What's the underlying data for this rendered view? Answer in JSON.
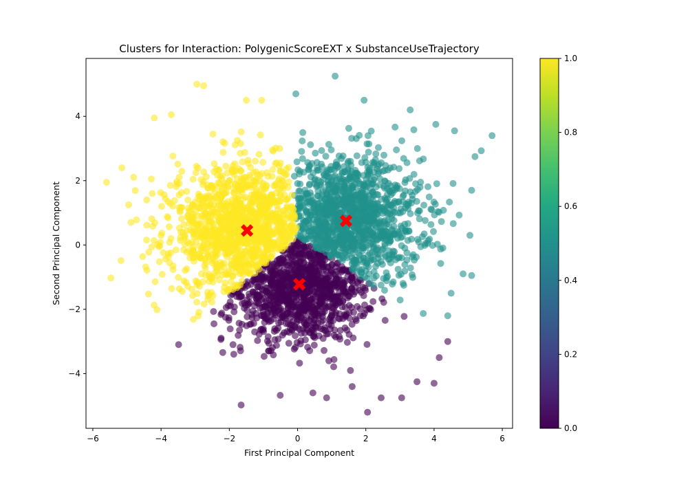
{
  "chart_data": {
    "type": "scatter",
    "title": "Clusters for Interaction: PolygenicScoreEXT x SubstanceUseTrajectory",
    "xlabel": "First Principal Component",
    "ylabel": "Second Principal Component",
    "xlim": [
      -6.2,
      6.3
    ],
    "ylim": [
      -5.7,
      5.8
    ],
    "xticks": [
      -6,
      -4,
      -2,
      0,
      2,
      4,
      6
    ],
    "yticks": [
      -4,
      -2,
      0,
      2,
      4
    ],
    "xtick_labels": [
      "−6",
      "−4",
      "−2",
      "0",
      "2",
      "4",
      "6"
    ],
    "ytick_labels": [
      "−4",
      "−2",
      "0",
      "2",
      "4"
    ],
    "grid": false,
    "colormap": "viridis",
    "colorbar": {
      "min": 0.0,
      "max": 1.0,
      "ticks": [
        0.0,
        0.2,
        0.4,
        0.6,
        0.8,
        1.0
      ],
      "tick_labels": [
        "0.0",
        "0.2",
        "0.4",
        "0.6",
        "0.8",
        "1.0"
      ]
    },
    "clusters": [
      {
        "label": 0.0,
        "color": "#440154",
        "center": [
          0.05,
          -1.2
        ],
        "spread": [
          1.1,
          0.9
        ],
        "count": 1400
      },
      {
        "label": 0.5,
        "color": "#21918c",
        "center": [
          1.4,
          0.75
        ],
        "spread": [
          1.1,
          1.0
        ],
        "count": 1500
      },
      {
        "label": 1.0,
        "color": "#fde725",
        "center": [
          -1.5,
          0.45
        ],
        "spread": [
          1.1,
          1.0
        ],
        "count": 1500
      }
    ],
    "outliers": [
      {
        "cluster": 1.0,
        "x": -5.6,
        "y": 1.95
      },
      {
        "cluster": 1.0,
        "x": -5.15,
        "y": 2.4
      },
      {
        "cluster": 1.0,
        "x": -2.95,
        "y": 5.0
      },
      {
        "cluster": 1.0,
        "x": -2.75,
        "y": 4.95
      },
      {
        "cluster": 1.0,
        "x": -1.5,
        "y": 4.5
      },
      {
        "cluster": 1.0,
        "x": -1.05,
        "y": 4.5
      },
      {
        "cluster": 1.0,
        "x": -4.2,
        "y": 3.95
      },
      {
        "cluster": 1.0,
        "x": -3.7,
        "y": 4.05
      },
      {
        "cluster": 1.0,
        "x": -4.95,
        "y": 1.25
      },
      {
        "cluster": 1.0,
        "x": -3.65,
        "y": -0.65
      },
      {
        "cluster": 0.5,
        "x": 1.1,
        "y": 5.25
      },
      {
        "cluster": 0.5,
        "x": -0.05,
        "y": 4.7
      },
      {
        "cluster": 0.5,
        "x": 1.95,
        "y": 4.5
      },
      {
        "cluster": 0.5,
        "x": 5.7,
        "y": 3.4
      },
      {
        "cluster": 0.5,
        "x": 5.2,
        "y": 2.75
      },
      {
        "cluster": 0.5,
        "x": 5.1,
        "y": 1.7
      },
      {
        "cluster": 0.5,
        "x": 5.05,
        "y": 0.3
      },
      {
        "cluster": 0.5,
        "x": 5.1,
        "y": -0.95
      },
      {
        "cluster": 0.5,
        "x": 4.85,
        "y": -0.9
      },
      {
        "cluster": 0.5,
        "x": 4.6,
        "y": 3.55
      },
      {
        "cluster": 0.5,
        "x": 4.4,
        "y": -2.2
      },
      {
        "cluster": 0.5,
        "x": 4.5,
        "y": -1.5
      },
      {
        "cluster": 0.5,
        "x": 4.05,
        "y": 3.75
      },
      {
        "cluster": 0.5,
        "x": 3.3,
        "y": 4.2
      },
      {
        "cluster": 0.0,
        "x": 2.05,
        "y": -5.2
      },
      {
        "cluster": 0.0,
        "x": 0.85,
        "y": -4.75
      },
      {
        "cluster": 0.0,
        "x": 3.05,
        "y": -4.75
      },
      {
        "cluster": 0.0,
        "x": 2.45,
        "y": -4.75
      },
      {
        "cluster": 0.0,
        "x": 0.45,
        "y": -4.6
      },
      {
        "cluster": 0.0,
        "x": 4.0,
        "y": -4.3
      },
      {
        "cluster": 0.0,
        "x": 4.4,
        "y": -3.0
      },
      {
        "cluster": 0.0,
        "x": 4.15,
        "y": -3.5
      },
      {
        "cluster": 0.0,
        "x": -2.45,
        "y": -2.45
      },
      {
        "cluster": 0.0,
        "x": -1.7,
        "y": -2.65
      },
      {
        "cluster": 0.0,
        "x": 3.5,
        "y": -4.25
      },
      {
        "cluster": 0.0,
        "x": 1.6,
        "y": -4.4
      }
    ],
    "centroids": [
      {
        "x": -1.48,
        "y": 0.45
      },
      {
        "x": 1.42,
        "y": 0.75
      },
      {
        "x": 0.05,
        "y": -1.22
      }
    ],
    "centroid_color": "#ff0000"
  }
}
